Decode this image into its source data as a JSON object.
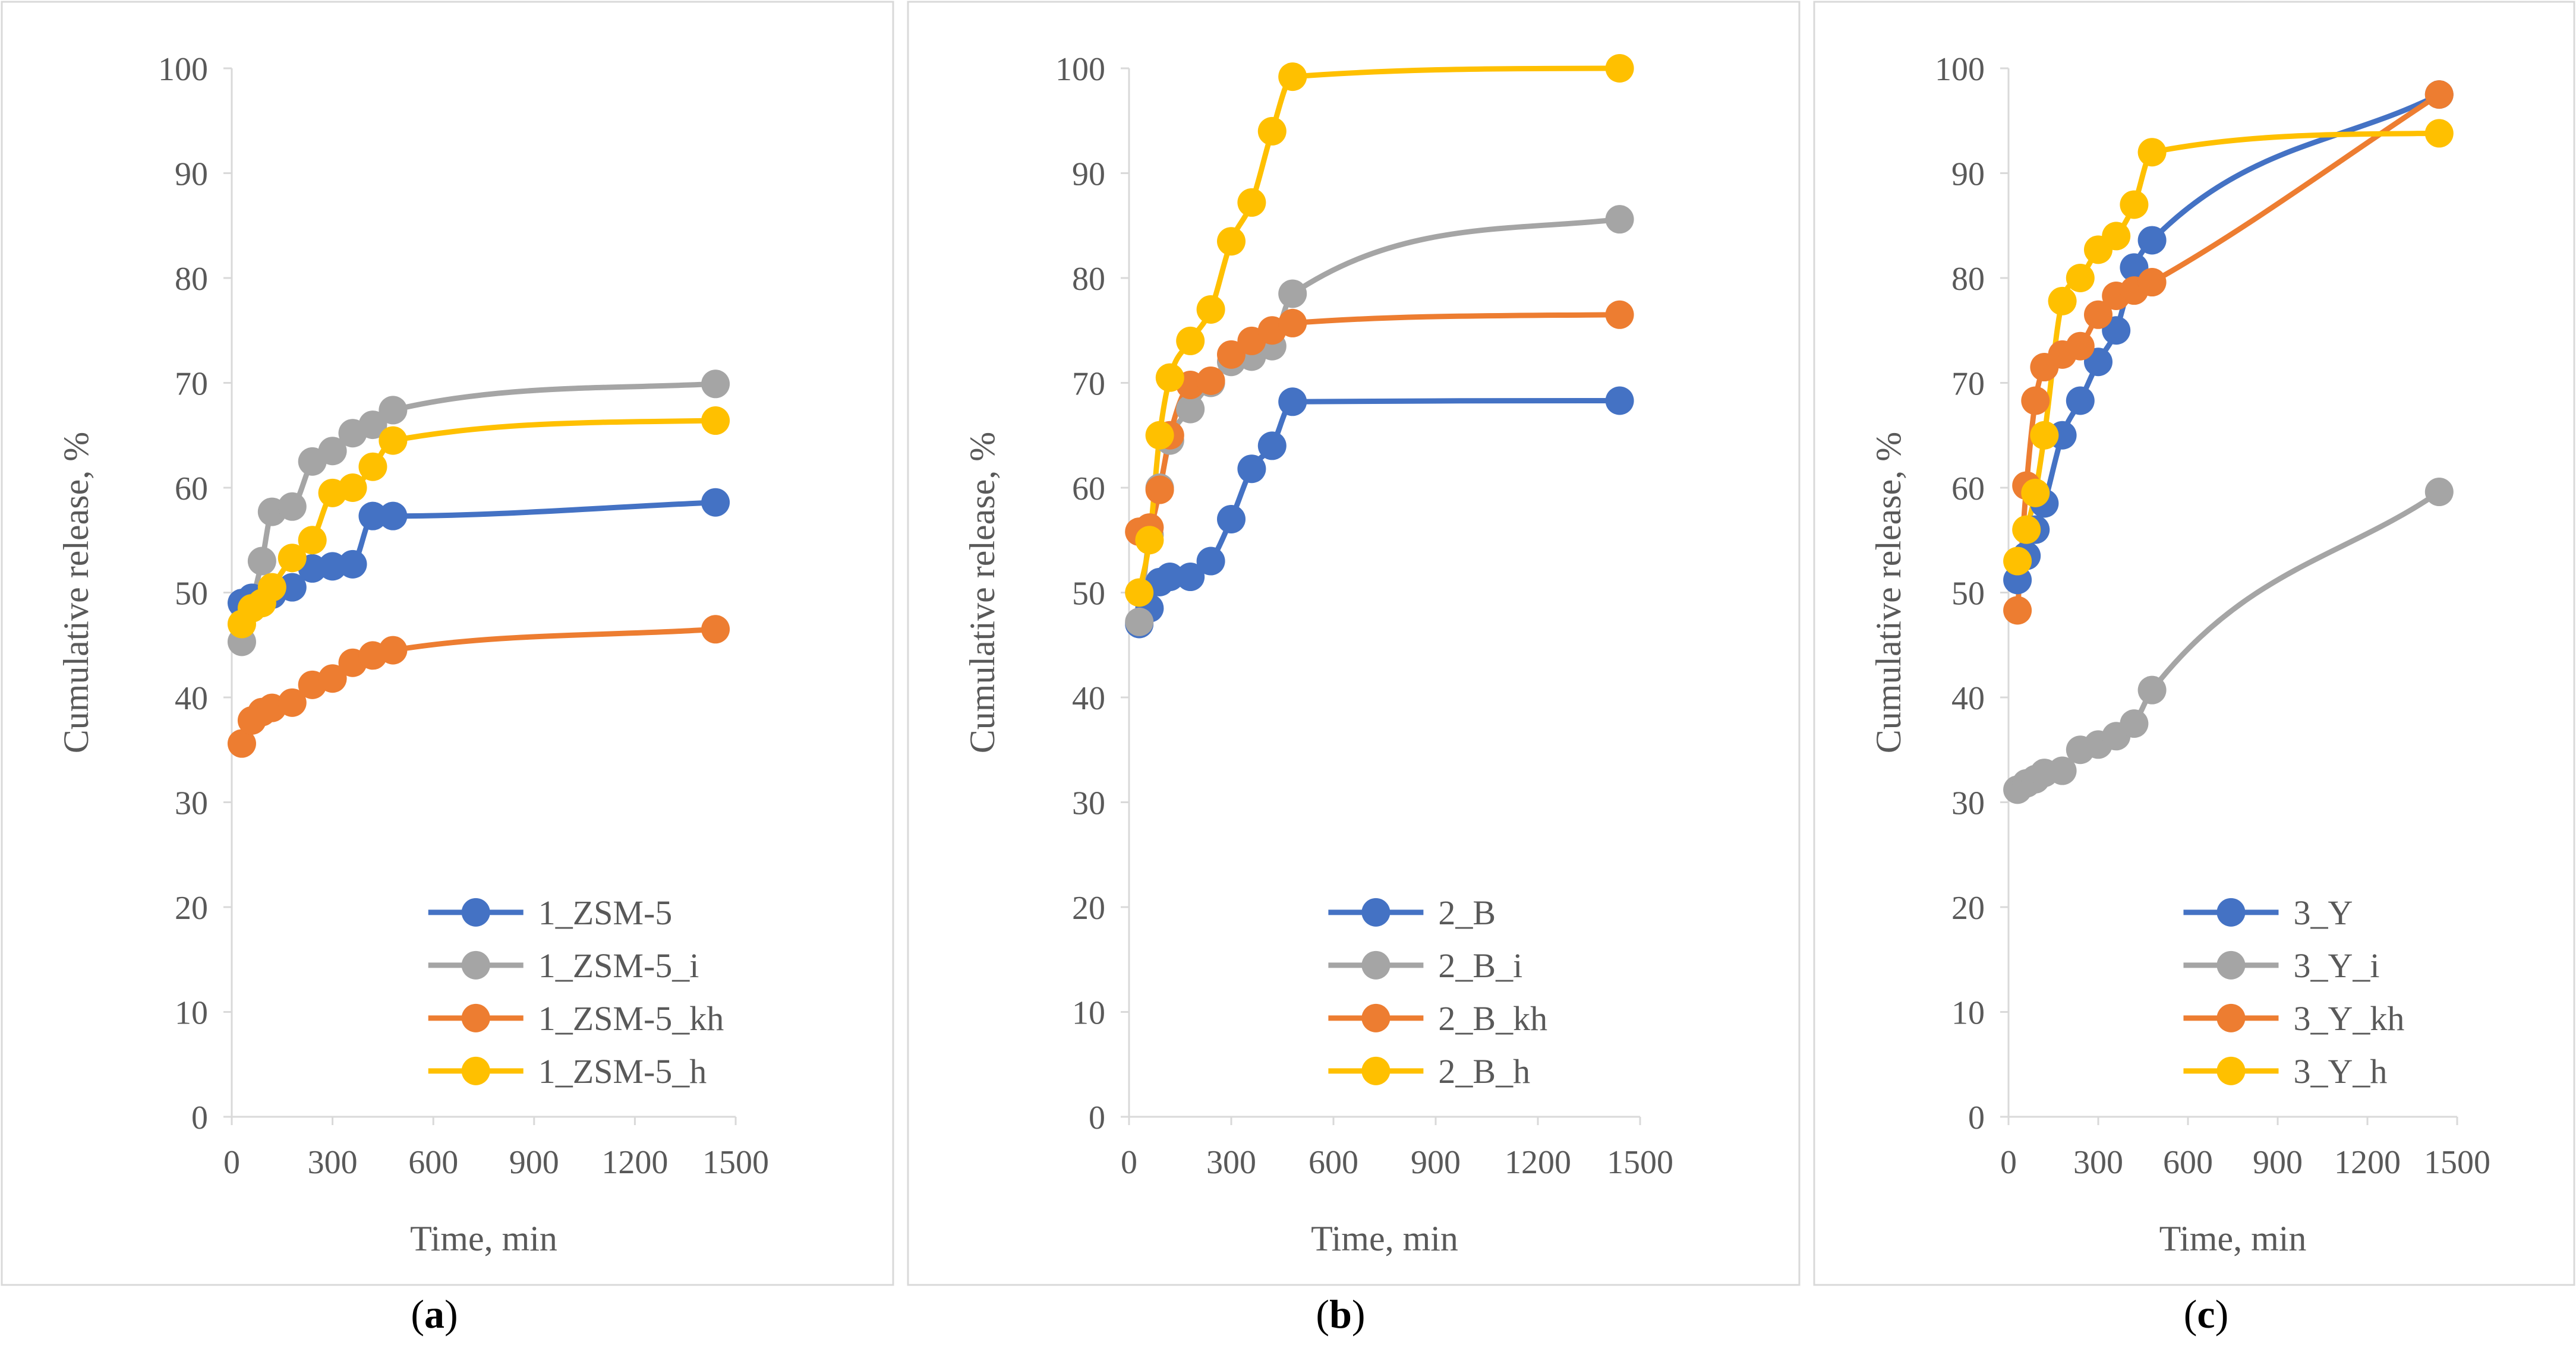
{
  "chart_data": [
    {
      "type": "line",
      "panel_label": "a",
      "xlabel": "Time, min",
      "ylabel": "Cumulative release, %",
      "xlim": [
        0,
        1500
      ],
      "ylim": [
        0,
        100
      ],
      "xticks": [
        0,
        300,
        600,
        900,
        1200,
        1500
      ],
      "yticks": [
        0,
        10,
        20,
        30,
        40,
        50,
        60,
        70,
        80,
        90,
        100
      ],
      "grid": false,
      "legend": "bottom-right",
      "series": [
        {
          "name": "1_ZSM-5",
          "color": "#4472C4",
          "x": [
            30,
            60,
            120,
            180,
            240,
            300,
            360,
            420,
            480,
            1440
          ],
          "y": [
            49.0,
            49.5,
            49.8,
            50.5,
            52.3,
            52.5,
            52.7,
            57.3,
            57.3,
            58.6
          ]
        },
        {
          "name": "1_ZSM-5_i",
          "color": "#A5A5A5",
          "x": [
            30,
            90,
            120,
            180,
            240,
            300,
            360,
            420,
            480,
            1440
          ],
          "y": [
            45.3,
            53.0,
            57.7,
            58.2,
            62.5,
            63.5,
            65.2,
            66.0,
            67.4,
            69.9
          ]
        },
        {
          "name": "1_ZSM-5_kh",
          "color": "#ED7D31",
          "x": [
            30,
            60,
            90,
            120,
            180,
            240,
            300,
            360,
            420,
            480,
            1440
          ],
          "y": [
            35.6,
            37.8,
            38.6,
            39.0,
            39.5,
            41.2,
            41.8,
            43.3,
            44.0,
            44.5,
            46.5
          ]
        },
        {
          "name": "1_ZSM-5_h",
          "color": "#FFC000",
          "x": [
            30,
            60,
            90,
            120,
            180,
            240,
            300,
            360,
            420,
            480,
            1440
          ],
          "y": [
            47.0,
            48.5,
            49.0,
            50.5,
            53.3,
            55.0,
            59.5,
            60.0,
            62.0,
            64.5,
            66.4
          ]
        }
      ]
    },
    {
      "type": "line",
      "panel_label": "b",
      "xlabel": "Time, min",
      "ylabel": "Cumulative release, %",
      "xlim": [
        0,
        1500
      ],
      "ylim": [
        0,
        100
      ],
      "xticks": [
        0,
        300,
        600,
        900,
        1200,
        1500
      ],
      "yticks": [
        0,
        10,
        20,
        30,
        40,
        50,
        60,
        70,
        80,
        90,
        100
      ],
      "grid": false,
      "legend": "bottom-right",
      "series": [
        {
          "name": "2_B",
          "color": "#4472C4",
          "x": [
            30,
            60,
            90,
            120,
            180,
            240,
            300,
            360,
            420,
            480,
            1440
          ],
          "y": [
            47.0,
            48.5,
            51.0,
            51.5,
            51.5,
            53.0,
            57.0,
            61.8,
            64.0,
            68.2,
            68.3
          ]
        },
        {
          "name": "2_B_i",
          "color": "#A5A5A5",
          "x": [
            30,
            60,
            90,
            120,
            180,
            240,
            300,
            360,
            420,
            480,
            1440
          ],
          "y": [
            47.2,
            55.5,
            60.0,
            64.5,
            67.5,
            70.0,
            72.0,
            72.5,
            73.5,
            78.5,
            85.6
          ]
        },
        {
          "name": "2_B_kh",
          "color": "#ED7D31",
          "x": [
            30,
            60,
            90,
            120,
            180,
            240,
            300,
            360,
            420,
            480,
            1440
          ],
          "y": [
            55.8,
            56.2,
            59.8,
            65.0,
            69.8,
            70.2,
            72.7,
            74.0,
            75.0,
            75.7,
            76.5
          ]
        },
        {
          "name": "2_B_h",
          "color": "#FFC000",
          "x": [
            30,
            60,
            90,
            120,
            180,
            240,
            300,
            360,
            420,
            480,
            1440
          ],
          "y": [
            50.0,
            55.0,
            65.0,
            70.5,
            74.0,
            77.0,
            83.5,
            87.2,
            94.0,
            99.2,
            100.0
          ]
        }
      ]
    },
    {
      "type": "line",
      "panel_label": "c",
      "xlabel": "Time, min",
      "ylabel": "Cumulative release, %",
      "xlim": [
        0,
        1500
      ],
      "ylim": [
        0,
        100
      ],
      "xticks": [
        0,
        300,
        600,
        900,
        1200,
        1500
      ],
      "yticks": [
        0,
        10,
        20,
        30,
        40,
        50,
        60,
        70,
        80,
        90,
        100
      ],
      "grid": false,
      "legend": "bottom-right",
      "series": [
        {
          "name": "3_Y",
          "color": "#4472C4",
          "x": [
            30,
            60,
            90,
            120,
            180,
            240,
            300,
            360,
            420,
            480,
            1440
          ],
          "y": [
            51.2,
            53.5,
            56.0,
            58.5,
            65.0,
            68.3,
            72.0,
            75.0,
            81.0,
            83.6,
            97.5
          ]
        },
        {
          "name": "3_Y_i",
          "color": "#A5A5A5",
          "x": [
            30,
            60,
            90,
            120,
            180,
            240,
            300,
            360,
            420,
            480,
            1440
          ],
          "y": [
            31.2,
            31.8,
            32.2,
            32.8,
            33.0,
            35.0,
            35.5,
            36.3,
            37.5,
            40.7,
            59.6
          ]
        },
        {
          "name": "3_Y_kh",
          "color": "#ED7D31",
          "x": [
            30,
            60,
            90,
            120,
            180,
            240,
            300,
            360,
            420,
            480,
            1440
          ],
          "y": [
            48.3,
            60.2,
            68.3,
            71.5,
            72.7,
            73.5,
            76.5,
            78.3,
            78.8,
            79.6,
            97.5
          ]
        },
        {
          "name": "3_Y_h",
          "color": "#FFC000",
          "x": [
            30,
            60,
            90,
            120,
            180,
            240,
            300,
            360,
            420,
            480,
            1440
          ],
          "y": [
            53.0,
            56.0,
            59.5,
            65.0,
            77.8,
            80.0,
            82.7,
            84.0,
            87.0,
            92.0,
            93.8
          ]
        }
      ]
    }
  ]
}
